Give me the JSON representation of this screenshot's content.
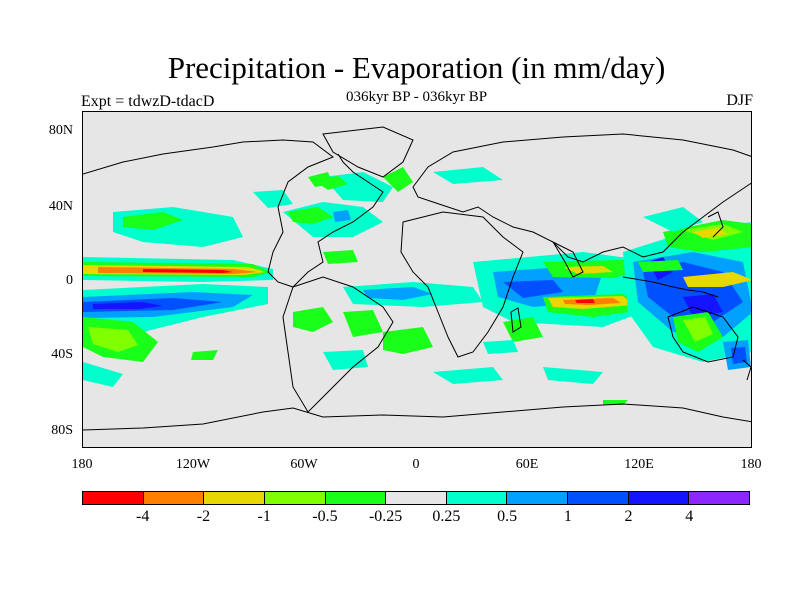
{
  "title": "Precipitation - Evaporation (in mm/day)",
  "subtitle": "036kyr BP - 036kyr BP",
  "left_string": "Expt = tdwzD-tdacD",
  "right_string": "DJF",
  "lat_labels": [
    "80N",
    "40N",
    "0",
    "40S",
    "80S"
  ],
  "lon_labels": [
    "180",
    "120W",
    "60W",
    "0",
    "60E",
    "120E",
    "180"
  ],
  "colorbar": {
    "colors": [
      "#ff0000",
      "#ff8000",
      "#e6d800",
      "#80ff00",
      "#19ff19",
      "#e6e6e6",
      "#00ffcc",
      "#00a0ff",
      "#0050ff",
      "#1414ff",
      "#8c28ff"
    ],
    "labels": [
      "-4",
      "-2",
      "-1",
      "-0.5",
      "-0.25",
      "0.25",
      "0.5",
      "1",
      "2",
      "4"
    ]
  },
  "chart_data": {
    "type": "heatmap",
    "title": "Precipitation - Evaporation (in mm/day)",
    "subtitle": "036kyr BP - 036kyr BP",
    "season": "DJF",
    "experiment": "Expt = tdwzD-tdacD",
    "x_range": [
      -180,
      180
    ],
    "y_range": [
      -90,
      90
    ],
    "levels": [
      -4,
      -2,
      -1,
      -0.5,
      -0.25,
      0.25,
      0.5,
      1,
      2,
      4
    ],
    "background_color": "#e6e6e6"
  }
}
